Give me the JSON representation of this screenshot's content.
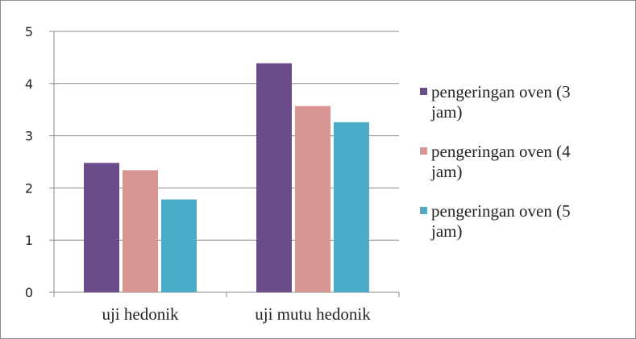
{
  "chart_data": {
    "type": "bar",
    "title": "",
    "xlabel": "",
    "ylabel": "",
    "categories": [
      "uji hedonik",
      "uji mutu hedonik"
    ],
    "series": [
      {
        "name": "pengeringan oven (3 jam)",
        "name_lines": [
          "pengeringan oven (3",
          "jam)"
        ],
        "values": [
          2.48,
          4.39
        ],
        "color": "#6b4c8a"
      },
      {
        "name": "pengeringan oven (4 jam)",
        "name_lines": [
          "pengeringan oven (4",
          "jam)"
        ],
        "values": [
          2.34,
          3.57
        ],
        "color": "#d99594"
      },
      {
        "name": "pengeringan oven (5 jam)",
        "name_lines": [
          "pengeringan oven (5",
          "jam)"
        ],
        "values": [
          1.78,
          3.26
        ],
        "color": "#4aacc6"
      }
    ],
    "ylim": [
      0,
      5
    ],
    "yticks": [
      0,
      1,
      2,
      3,
      4,
      5
    ],
    "grid": true,
    "legend_position": "right"
  }
}
